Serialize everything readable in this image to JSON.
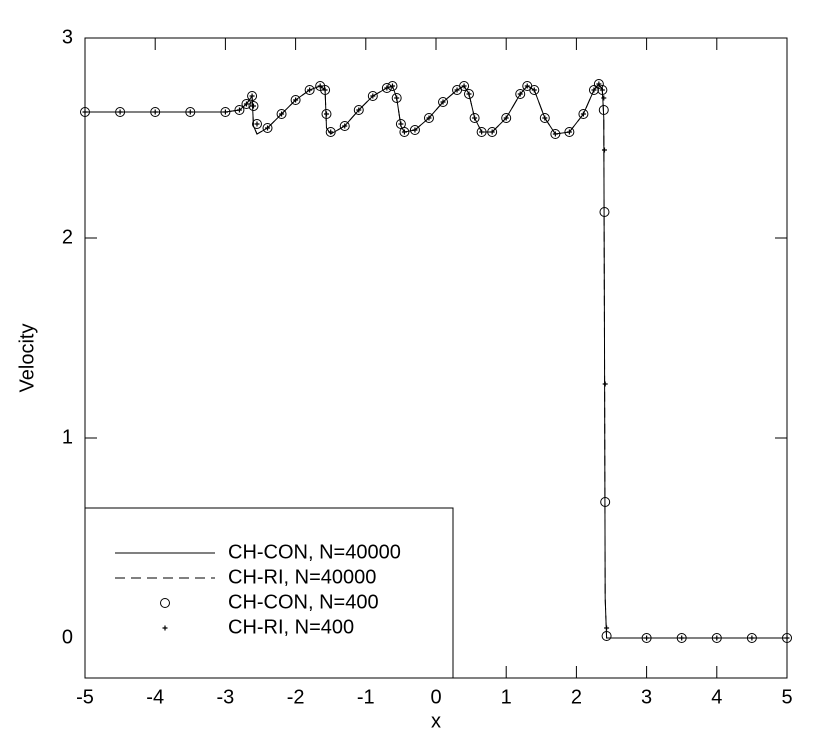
{
  "chart_data": {
    "type": "line",
    "xlabel": "x",
    "ylabel": "Velocity",
    "xlim": [
      -5,
      5
    ],
    "ylim": [
      -0.2,
      3
    ],
    "xticks": [
      -5,
      -4,
      -3,
      -2,
      -1,
      0,
      1,
      2,
      3,
      4,
      5
    ],
    "yticks": [
      0,
      1,
      2,
      3
    ],
    "legend": "lower left",
    "series": [
      {
        "name": "CH-CON, N=40000",
        "style": "solid",
        "color": "#000000",
        "x": [
          -5,
          -3,
          -2.8,
          -2.7,
          -2.62,
          -2.6,
          -2.55,
          -2.4,
          -2.2,
          -2,
          -1.8,
          -1.65,
          -1.58,
          -1.56,
          -1.5,
          -1.3,
          -1.1,
          -0.9,
          -0.7,
          -0.62,
          -0.56,
          -0.5,
          -0.45,
          -0.3,
          -0.1,
          0.1,
          0.3,
          0.4,
          0.47,
          0.55,
          0.65,
          0.8,
          1,
          1.2,
          1.3,
          1.4,
          1.55,
          1.7,
          1.9,
          2.1,
          2.25,
          2.32,
          2.37,
          2.39,
          2.4,
          2.41,
          2.43,
          5
        ],
        "values": [
          2.63,
          2.63,
          2.64,
          2.67,
          2.71,
          2.56,
          2.52,
          2.55,
          2.62,
          2.69,
          2.74,
          2.76,
          2.74,
          2.55,
          2.52,
          2.56,
          2.64,
          2.71,
          2.75,
          2.76,
          2.7,
          2.56,
          2.53,
          2.54,
          2.6,
          2.68,
          2.74,
          2.76,
          2.72,
          2.6,
          2.53,
          2.53,
          2.6,
          2.72,
          2.76,
          2.74,
          2.6,
          2.52,
          2.53,
          2.62,
          2.74,
          2.77,
          2.74,
          2.6,
          1.5,
          0.2,
          0,
          0
        ]
      },
      {
        "name": "CH-RI, N=40000",
        "style": "dashed",
        "color": "#000000",
        "x": [
          -5,
          -3,
          -2.8,
          -2.7,
          -2.62,
          -2.6,
          -2.55,
          -2.4,
          -2.2,
          -2,
          -1.8,
          -1.65,
          -1.58,
          -1.56,
          -1.5,
          -1.3,
          -1.1,
          -0.9,
          -0.7,
          -0.62,
          -0.56,
          -0.5,
          -0.45,
          -0.3,
          -0.1,
          0.1,
          0.3,
          0.4,
          0.47,
          0.55,
          0.65,
          0.8,
          1,
          1.2,
          1.3,
          1.4,
          1.55,
          1.7,
          1.9,
          2.1,
          2.25,
          2.32,
          2.37,
          2.39,
          2.4,
          2.41,
          2.43,
          5
        ],
        "values": [
          2.63,
          2.63,
          2.64,
          2.67,
          2.71,
          2.56,
          2.52,
          2.55,
          2.62,
          2.69,
          2.74,
          2.76,
          2.74,
          2.55,
          2.52,
          2.56,
          2.64,
          2.71,
          2.75,
          2.76,
          2.7,
          2.56,
          2.53,
          2.54,
          2.6,
          2.68,
          2.74,
          2.76,
          2.72,
          2.6,
          2.53,
          2.53,
          2.6,
          2.72,
          2.76,
          2.74,
          2.6,
          2.52,
          2.53,
          2.62,
          2.74,
          2.77,
          2.74,
          2.6,
          1.5,
          0.2,
          0,
          0
        ]
      },
      {
        "name": "CH-CON, N=400",
        "style": "circle",
        "color": "#000000",
        "x": [
          -5,
          -4.5,
          -4,
          -3.5,
          -3,
          -2.8,
          -2.7,
          -2.62,
          -2.6,
          -2.55,
          -2.4,
          -2.2,
          -2,
          -1.8,
          -1.65,
          -1.58,
          -1.56,
          -1.5,
          -1.3,
          -1.1,
          -0.9,
          -0.7,
          -0.62,
          -0.56,
          -0.5,
          -0.45,
          -0.3,
          -0.1,
          0.1,
          0.3,
          0.4,
          0.47,
          0.55,
          0.65,
          0.8,
          1,
          1.2,
          1.3,
          1.4,
          1.55,
          1.7,
          1.9,
          2.1,
          2.25,
          2.32,
          2.37,
          2.39,
          2.4,
          2.41,
          2.43,
          3,
          3.5,
          4,
          4.5,
          5
        ],
        "values": [
          2.63,
          2.63,
          2.63,
          2.63,
          2.63,
          2.64,
          2.67,
          2.71,
          2.66,
          2.57,
          2.55,
          2.62,
          2.69,
          2.74,
          2.76,
          2.74,
          2.62,
          2.53,
          2.56,
          2.64,
          2.71,
          2.75,
          2.76,
          2.7,
          2.57,
          2.53,
          2.54,
          2.6,
          2.68,
          2.74,
          2.76,
          2.72,
          2.6,
          2.53,
          2.53,
          2.6,
          2.72,
          2.76,
          2.74,
          2.6,
          2.52,
          2.53,
          2.62,
          2.74,
          2.77,
          2.74,
          2.64,
          2.13,
          0.68,
          0.01,
          0,
          0,
          0,
          0,
          0
        ]
      },
      {
        "name": "CH-RI, N=400",
        "style": "plus",
        "color": "#000000",
        "x": [
          -5,
          -4.5,
          -4,
          -3.5,
          -3,
          -2.8,
          -2.7,
          -2.62,
          -2.6,
          -2.55,
          -2.4,
          -2.2,
          -2,
          -1.8,
          -1.65,
          -1.58,
          -1.56,
          -1.5,
          -1.3,
          -1.1,
          -0.9,
          -0.7,
          -0.62,
          -0.56,
          -0.5,
          -0.45,
          -0.3,
          -0.1,
          0.1,
          0.3,
          0.4,
          0.47,
          0.55,
          0.65,
          0.8,
          1,
          1.2,
          1.3,
          1.4,
          1.55,
          1.7,
          1.9,
          2.1,
          2.25,
          2.32,
          2.37,
          2.39,
          2.4,
          2.41,
          2.43,
          3,
          3.5,
          4,
          4.5,
          5
        ],
        "values": [
          2.63,
          2.63,
          2.63,
          2.63,
          2.63,
          2.64,
          2.67,
          2.71,
          2.66,
          2.57,
          2.55,
          2.62,
          2.69,
          2.74,
          2.76,
          2.74,
          2.62,
          2.53,
          2.56,
          2.64,
          2.71,
          2.75,
          2.76,
          2.7,
          2.57,
          2.53,
          2.54,
          2.6,
          2.68,
          2.74,
          2.76,
          2.72,
          2.6,
          2.53,
          2.53,
          2.6,
          2.72,
          2.76,
          2.74,
          2.6,
          2.52,
          2.53,
          2.62,
          2.74,
          2.77,
          2.74,
          2.7,
          2.44,
          1.27,
          0.05,
          0,
          0,
          0,
          0,
          0
        ]
      }
    ]
  }
}
